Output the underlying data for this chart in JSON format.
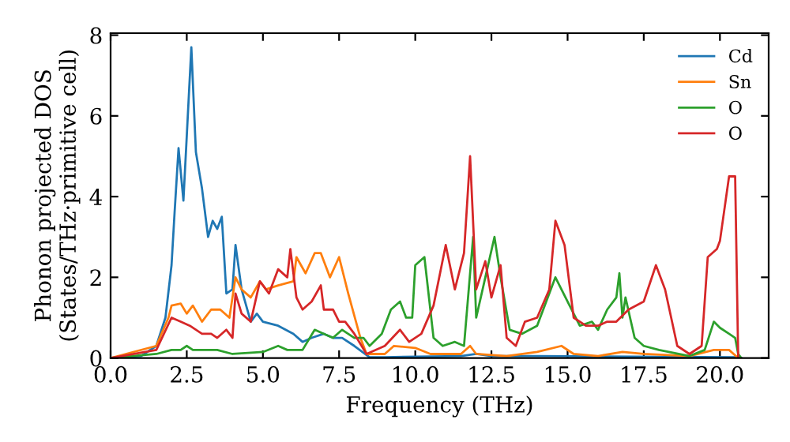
{
  "chart_data": {
    "type": "line",
    "xlabel": "Frequency (THz)",
    "ylabel": "Phonon projected DOS\n(States/THz·primitive cell)",
    "xlim": [
      0,
      21.6
    ],
    "ylim": [
      0,
      8.05
    ],
    "xticks": [
      {
        "value": 0,
        "label": "0.0"
      },
      {
        "value": 2.5,
        "label": "2.5"
      },
      {
        "value": 5,
        "label": "5.0"
      },
      {
        "value": 7.5,
        "label": "7.5"
      },
      {
        "value": 10,
        "label": "10.0"
      },
      {
        "value": 12.5,
        "label": "12.5"
      },
      {
        "value": 15,
        "label": "15.0"
      },
      {
        "value": 17.5,
        "label": "17.5"
      },
      {
        "value": 20,
        "label": "20.0"
      }
    ],
    "yticks": [
      0,
      2,
      4,
      6,
      8
    ],
    "grid": false,
    "legend": "top right",
    "marker": "none",
    "line_style": "solid",
    "series": [
      {
        "name": "Cd",
        "color": "#1f77b4",
        "x": [
          0,
          1,
          1.5,
          1.8,
          2.0,
          2.1,
          2.23,
          2.39,
          2.5,
          2.65,
          2.8,
          3.0,
          3.2,
          3.35,
          3.5,
          3.65,
          3.8,
          4.0,
          4.1,
          4.3,
          4.6,
          4.8,
          5.0,
          5.5,
          6.0,
          6.3,
          6.6,
          7.0,
          7.3,
          7.6,
          8.0,
          8.5,
          9,
          11.5,
          12,
          12.5,
          14,
          20.5,
          20.7
        ],
        "values": [
          0,
          0.05,
          0.3,
          1.0,
          2.3,
          3.6,
          5.2,
          3.9,
          5.5,
          7.7,
          5.1,
          4.2,
          3.0,
          3.4,
          3.2,
          3.5,
          1.6,
          1.7,
          2.8,
          1.7,
          0.9,
          1.1,
          0.9,
          0.8,
          0.6,
          0.4,
          0.5,
          0.6,
          0.5,
          0.5,
          0.3,
          0.02,
          0.02,
          0.05,
          0.1,
          0.05,
          0.05,
          0.02,
          0
        ]
      },
      {
        "name": "Sn",
        "color": "#ff7f0e",
        "x": [
          0,
          1.5,
          1.9,
          2.0,
          2.3,
          2.5,
          2.7,
          3.0,
          3.3,
          3.6,
          3.9,
          4.1,
          4.3,
          4.6,
          4.9,
          5.1,
          5.5,
          6.0,
          6.1,
          6.4,
          6.7,
          6.9,
          7.2,
          7.5,
          7.8,
          8.2,
          8.4,
          9.0,
          9.3,
          10.0,
          10.5,
          11.5,
          11.8,
          12.0,
          13,
          14,
          14.8,
          15.2,
          16,
          16.8,
          17.5,
          19,
          19.8,
          20.3,
          20.6
        ],
        "values": [
          0,
          0.3,
          1.0,
          1.3,
          1.35,
          1.1,
          1.3,
          0.9,
          1.2,
          1.2,
          1.0,
          2.0,
          1.7,
          1.5,
          1.9,
          1.7,
          1.8,
          1.9,
          2.5,
          2.1,
          2.6,
          2.6,
          2.0,
          2.5,
          1.6,
          0.5,
          0.1,
          0.1,
          0.3,
          0.25,
          0.1,
          0.1,
          0.3,
          0.1,
          0.05,
          0.15,
          0.3,
          0.1,
          0.05,
          0.15,
          0.1,
          0.05,
          0.2,
          0.2,
          0
        ]
      },
      {
        "name": "O",
        "color": "#2ca02c",
        "x": [
          0,
          1.5,
          2.0,
          2.3,
          2.5,
          2.7,
          3.0,
          3.5,
          4,
          5,
          5.5,
          5.8,
          6.3,
          6.7,
          7.0,
          7.3,
          7.6,
          8.0,
          8.3,
          8.5,
          8.9,
          9.2,
          9.5,
          9.7,
          9.9,
          10.0,
          10.3,
          10.6,
          10.9,
          11.3,
          11.6,
          11.9,
          12.0,
          12.3,
          12.6,
          12.8,
          13.1,
          13.5,
          14.0,
          14.6,
          15.0,
          15.4,
          15.8,
          16.0,
          16.3,
          16.6,
          16.7,
          16.8,
          16.9,
          17.2,
          17.5,
          18.0,
          19.0,
          19.5,
          19.8,
          20.0,
          20.3,
          20.5,
          20.6,
          20.7
        ],
        "values": [
          0,
          0.1,
          0.2,
          0.2,
          0.3,
          0.2,
          0.2,
          0.2,
          0.1,
          0.15,
          0.3,
          0.2,
          0.2,
          0.7,
          0.6,
          0.5,
          0.7,
          0.5,
          0.5,
          0.3,
          0.6,
          1.2,
          1.4,
          1.0,
          1.0,
          2.3,
          2.5,
          0.5,
          0.3,
          0.4,
          0.3,
          3.0,
          1.0,
          2.0,
          3.0,
          2.0,
          0.7,
          0.6,
          0.8,
          2.0,
          1.4,
          0.8,
          0.9,
          0.7,
          1.2,
          1.5,
          2.1,
          1.0,
          1.5,
          0.5,
          0.3,
          0.2,
          0.05,
          0.2,
          0.9,
          0.75,
          0.6,
          0.5,
          0.1,
          0
        ]
      },
      {
        "name": "O",
        "color": "#d62728",
        "x": [
          0,
          1.5,
          2.0,
          2.3,
          2.6,
          3.0,
          3.3,
          3.5,
          3.8,
          4.0,
          4.1,
          4.3,
          4.6,
          4.9,
          5.2,
          5.5,
          5.8,
          5.9,
          6.1,
          6.3,
          6.6,
          6.9,
          7.0,
          7.3,
          7.5,
          7.7,
          8.0,
          8.4,
          9.0,
          9.5,
          9.8,
          10.2,
          10.6,
          11.0,
          11.3,
          11.6,
          11.8,
          12.0,
          12.3,
          12.5,
          12.8,
          13.0,
          13.3,
          13.6,
          14.0,
          14.4,
          14.6,
          14.9,
          15.2,
          15.6,
          16.0,
          16.3,
          16.6,
          17.0,
          17.5,
          17.9,
          18.2,
          18.6,
          19.0,
          19.4,
          19.6,
          19.9,
          20.0,
          20.3,
          20.5,
          20.6
        ],
        "values": [
          0,
          0.2,
          1.0,
          0.9,
          0.8,
          0.6,
          0.6,
          0.5,
          0.7,
          0.5,
          1.6,
          1.1,
          0.9,
          1.9,
          1.6,
          2.2,
          2.0,
          2.7,
          1.5,
          1.2,
          1.4,
          1.8,
          1.2,
          1.2,
          0.9,
          0.9,
          0.6,
          0.1,
          0.3,
          0.7,
          0.4,
          0.6,
          1.3,
          2.8,
          1.7,
          2.6,
          5.0,
          1.7,
          2.4,
          1.5,
          2.3,
          0.5,
          0.3,
          0.9,
          1.0,
          1.7,
          3.4,
          2.8,
          1.0,
          0.8,
          0.8,
          0.9,
          0.9,
          1.2,
          1.4,
          2.3,
          1.7,
          0.3,
          0.1,
          0.3,
          2.5,
          2.7,
          2.9,
          4.5,
          4.5,
          0
        ]
      }
    ]
  }
}
